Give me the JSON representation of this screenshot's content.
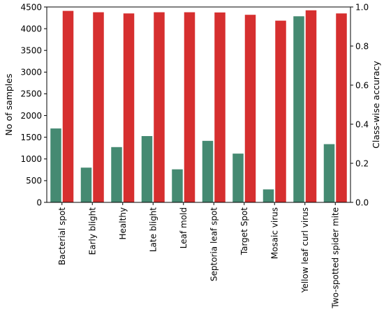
{
  "chart_data": {
    "type": "bar",
    "categories": [
      "Bacterial spot",
      "Early blight",
      "Healthy",
      "Late blight",
      "Leaf mold",
      "Septoria leaf spot",
      "Target Spot",
      "Mosaic virus",
      "Yellow leaf curl virus",
      "Two-spotted spider mite"
    ],
    "series": [
      {
        "axis": "left",
        "color": "#458a72",
        "values": [
          1702,
          800,
          1273,
          1527,
          761,
          1417,
          1123,
          299,
          4286,
          1341
        ]
      },
      {
        "axis": "right",
        "color": "#d62f2f",
        "values": [
          0.98,
          0.973,
          0.967,
          0.973,
          0.973,
          0.972,
          0.96,
          0.93,
          0.983,
          0.967
        ]
      }
    ],
    "xlabel": "",
    "ylabel": "No of samples",
    "ylim": [
      0,
      4500
    ],
    "yticks": [
      "0",
      "500",
      "1000",
      "1500",
      "2000",
      "2500",
      "3000",
      "3500",
      "4000",
      "4500"
    ],
    "y2label": "Class-wise accuracy",
    "y2lim": [
      0.0,
      1.0
    ],
    "y2ticks": [
      "0.0",
      "0.2",
      "0.4",
      "0.6",
      "0.8",
      "1.0"
    ],
    "grid": false,
    "legend": "none"
  }
}
